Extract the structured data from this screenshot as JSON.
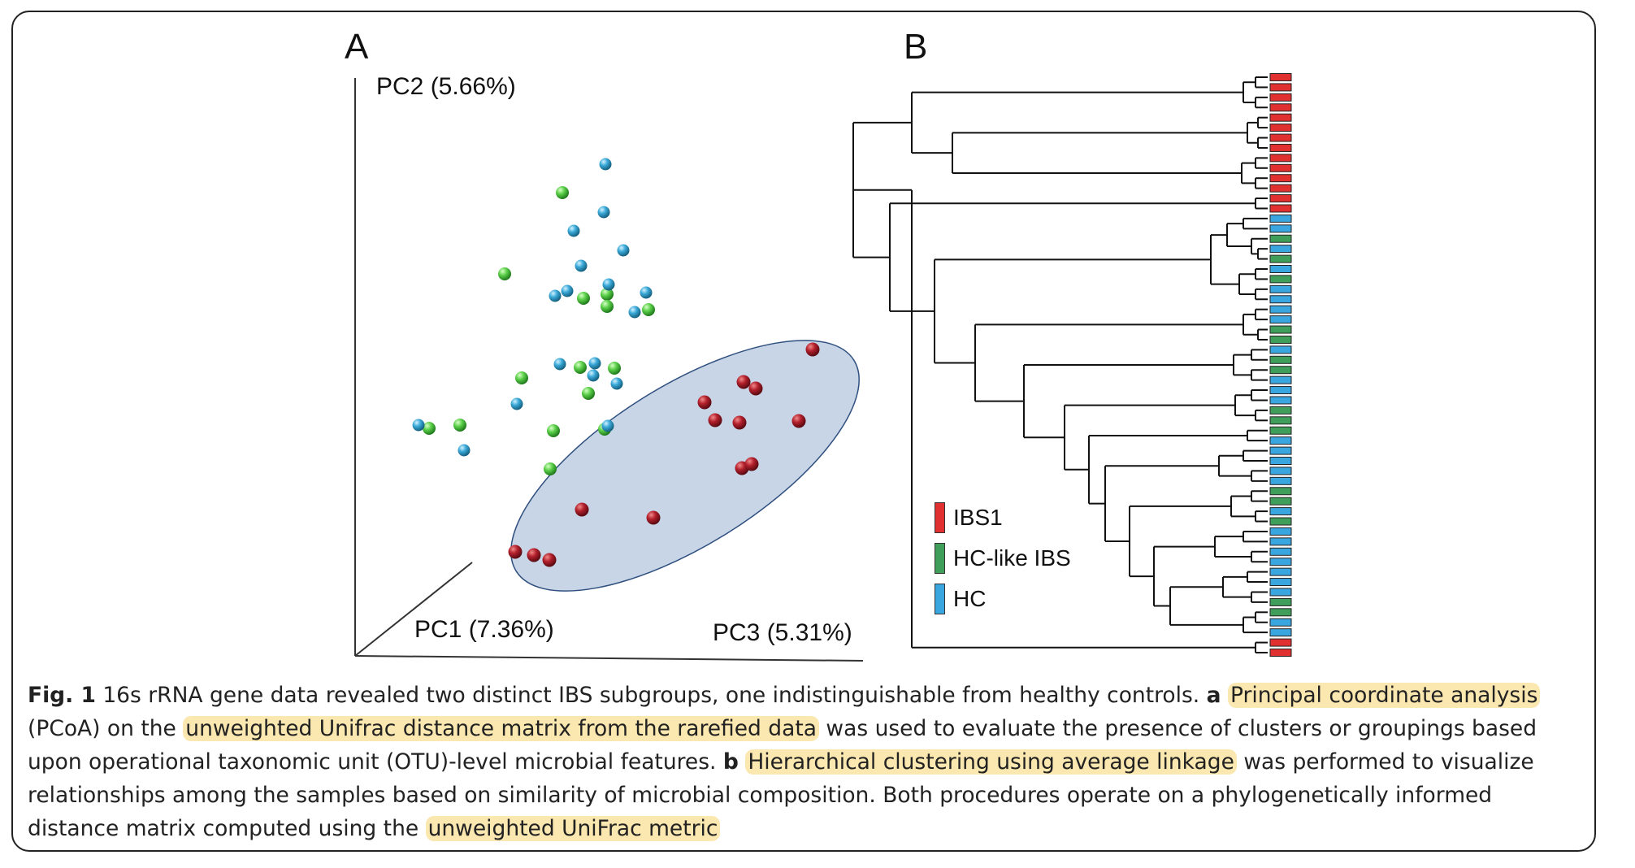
{
  "panelA": {
    "letter": "A",
    "pc1_label": "PC1 (7.36%)",
    "pc2_label": "PC2 (5.66%)",
    "pc3_label": "PC3 (5.31%)"
  },
  "panelB": {
    "letter": "B",
    "legend": [
      {
        "label": "IBS1",
        "color": "#e0302f"
      },
      {
        "label": "HC-like IBS",
        "color": "#3f9f5a"
      },
      {
        "label": "HC",
        "color": "#3aa6e0"
      }
    ]
  },
  "colors": {
    "ibs1": "#b3202c",
    "hclike": "#5cd04a",
    "hc": "#3aa9d8",
    "ellipse_fill": "#c7d5e6",
    "leaf_red": "#e0302f",
    "leaf_green": "#3f9f5a",
    "leaf_blue": "#3aa6e0"
  },
  "chart_data": [
    {
      "type": "scatter",
      "title": "",
      "axes": [
        "PC1 (7.36%)",
        "PC2 (5.66%)",
        "PC3 (5.31%)"
      ],
      "series": [
        {
          "name": "IBS1",
          "points": [
            [
              1000,
              430
            ],
            [
              930,
              478
            ],
            [
              915,
              470
            ],
            [
              867,
              495
            ],
            [
              880,
              517
            ],
            [
              910,
              520
            ],
            [
              983,
              518
            ],
            [
              913,
              576
            ],
            [
              925,
              571
            ],
            [
              804,
              637
            ],
            [
              716,
              627
            ],
            [
              634,
              679
            ],
            [
              657,
              683
            ],
            [
              676,
              689
            ]
          ]
        },
        {
          "name": "HC-like IBS",
          "points": [
            [
              692,
              237
            ],
            [
              621,
              337
            ],
            [
              718,
              367
            ],
            [
              747,
              362
            ],
            [
              747,
              377
            ],
            [
              798,
              381
            ],
            [
              642,
              465
            ],
            [
              714,
              452
            ],
            [
              756,
              453
            ],
            [
              724,
              484
            ],
            [
              566,
              523
            ],
            [
              681,
              530
            ],
            [
              744,
              528
            ],
            [
              677,
              577
            ],
            [
              528,
              527
            ]
          ]
        },
        {
          "name": "HC",
          "points": [
            [
              745,
              202
            ],
            [
              743,
              261
            ],
            [
              706,
              284
            ],
            [
              767,
              308
            ],
            [
              715,
              327
            ],
            [
              683,
              364
            ],
            [
              698,
              358
            ],
            [
              749,
              350
            ],
            [
              795,
              360
            ],
            [
              781,
              384
            ],
            [
              689,
              448
            ],
            [
              732,
              447
            ],
            [
              730,
              462
            ],
            [
              759,
              472
            ],
            [
              636,
              497
            ],
            [
              748,
              524
            ],
            [
              515,
              523
            ],
            [
              571,
              554
            ]
          ]
        }
      ],
      "grid": false
    },
    {
      "type": "dendrogram",
      "title": "",
      "leaves": [
        "IBS1",
        "IBS1",
        "IBS1",
        "IBS1",
        "IBS1",
        "IBS1",
        "IBS1",
        "IBS1",
        "IBS1",
        "IBS1",
        "IBS1",
        "IBS1",
        "IBS1",
        "IBS1",
        "HC",
        "HC",
        "HC-like IBS",
        "HC",
        "HC-like IBS",
        "HC",
        "HC-like IBS",
        "HC",
        "HC",
        "HC",
        "HC",
        "HC-like IBS",
        "HC-like IBS",
        "HC",
        "HC-like IBS",
        "HC-like IBS",
        "HC",
        "HC",
        "HC",
        "HC-like IBS",
        "HC-like IBS",
        "HC-like IBS",
        "HC",
        "HC",
        "HC",
        "HC",
        "HC",
        "HC-like IBS",
        "HC-like IBS",
        "HC",
        "HC-like IBS",
        "HC",
        "HC",
        "HC",
        "HC",
        "HC",
        "HC",
        "HC",
        "HC-like IBS",
        "HC-like IBS",
        "HC",
        "HC",
        "IBS1",
        "IBS1"
      ]
    }
  ],
  "caption": {
    "fig": "Fig. 1",
    "s1": " 16s rRNA gene data revealed two distinct IBS subgroups, one indistinguishable from healthy controls. ",
    "a": "a",
    "s2": " ",
    "h1": "Principal coordinate analysis",
    "s3": " (PCoA) on the ",
    "h2": "unweighted Unifrac distance matrix from the rarefied data",
    "s4": " was used to evaluate the presence of clusters or groupings based upon operational taxonomic unit (OTU)-level microbial features. ",
    "b": "b",
    "s5": " ",
    "h3": "Hierarchical clustering using average linkage",
    "s6": " was performed to visualize relationships among the samples based on similarity of microbial composition. Both procedures operate on a phylogenetically informed distance matrix computed using the ",
    "h4": "unweighted UniFrac metric"
  }
}
